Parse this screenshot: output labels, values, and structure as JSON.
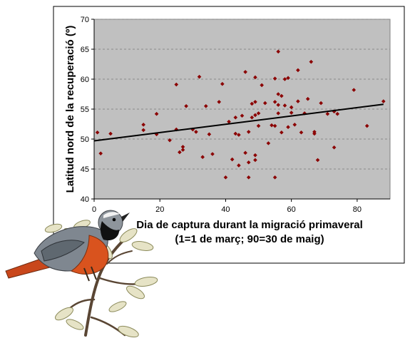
{
  "chart_data": {
    "type": "scatter",
    "title": "",
    "xlabel_lines": [
      "Dia de captura durant la migració primaveral",
      "(1=1 de març; 90=30 de maig)"
    ],
    "ylabel": "Latitud nord de la recuperació (º)",
    "xlim": [
      0,
      90
    ],
    "ylim": [
      40,
      70
    ],
    "xticks": [
      0,
      20,
      40,
      60,
      80
    ],
    "yticks": [
      40,
      45,
      50,
      55,
      60,
      65,
      70
    ],
    "grid": true,
    "legend": "none",
    "point_color": "#8b0000",
    "plot_bg": "#c0c0c0",
    "trendline": {
      "x": [
        0,
        88
      ],
      "y": [
        49.7,
        55.8
      ]
    },
    "series": [
      {
        "points": [
          [
            1,
            51.1
          ],
          [
            2,
            47.6
          ],
          [
            5,
            50.9
          ],
          [
            15,
            52.4
          ],
          [
            15,
            51.5
          ],
          [
            19,
            50.8
          ],
          [
            19,
            54.2
          ],
          [
            23,
            49.8
          ],
          [
            25,
            59.1
          ],
          [
            25,
            51.6
          ],
          [
            26,
            47.8
          ],
          [
            27,
            48.2
          ],
          [
            27,
            48.7
          ],
          [
            28,
            55.5
          ],
          [
            30,
            51.6
          ],
          [
            31,
            51.2
          ],
          [
            32,
            60.4
          ],
          [
            33,
            47.0
          ],
          [
            34,
            55.5
          ],
          [
            35,
            50.8
          ],
          [
            36,
            47.5
          ],
          [
            38,
            56.2
          ],
          [
            39,
            59.2
          ],
          [
            40,
            43.6
          ],
          [
            41,
            52.9
          ],
          [
            42,
            46.6
          ],
          [
            43,
            50.9
          ],
          [
            43,
            53.6
          ],
          [
            44,
            45.6
          ],
          [
            44,
            50.7
          ],
          [
            45,
            53.9
          ],
          [
            46,
            61.2
          ],
          [
            46,
            47.7
          ],
          [
            47,
            51.2
          ],
          [
            47,
            46.1
          ],
          [
            47,
            43.6
          ],
          [
            48,
            55.9
          ],
          [
            48,
            53.6
          ],
          [
            49,
            60.3
          ],
          [
            49,
            56.2
          ],
          [
            49,
            54.0
          ],
          [
            49,
            47.3
          ],
          [
            49,
            46.5
          ],
          [
            50,
            54.3
          ],
          [
            50,
            52.2
          ],
          [
            51,
            59.0
          ],
          [
            52,
            56.0
          ],
          [
            53,
            49.3
          ],
          [
            54,
            52.3
          ],
          [
            55,
            60.1
          ],
          [
            55,
            56.2
          ],
          [
            55,
            43.6
          ],
          [
            55,
            52.2
          ],
          [
            56,
            64.6
          ],
          [
            56,
            57.5
          ],
          [
            56,
            55.7
          ],
          [
            56,
            54.3
          ],
          [
            57,
            51.1
          ],
          [
            57,
            57.2
          ],
          [
            58,
            55.6
          ],
          [
            58,
            60.0
          ],
          [
            59,
            60.2
          ],
          [
            59,
            52.0
          ],
          [
            60,
            55.3
          ],
          [
            60,
            54.4
          ],
          [
            61,
            52.4
          ],
          [
            62,
            61.5
          ],
          [
            62,
            56.3
          ],
          [
            63,
            51.1
          ],
          [
            64,
            54.3
          ],
          [
            65,
            56.7
          ],
          [
            66,
            62.9
          ],
          [
            67,
            51.2
          ],
          [
            67,
            50.9
          ],
          [
            68,
            46.5
          ],
          [
            69,
            56.0
          ],
          [
            71,
            54.2
          ],
          [
            73,
            54.6
          ],
          [
            73,
            48.6
          ],
          [
            74,
            54.2
          ],
          [
            79,
            58.2
          ],
          [
            83,
            52.2
          ],
          [
            88,
            56.3
          ]
        ]
      }
    ]
  },
  "illustration": {
    "name": "redstart-bird-on-branch"
  }
}
